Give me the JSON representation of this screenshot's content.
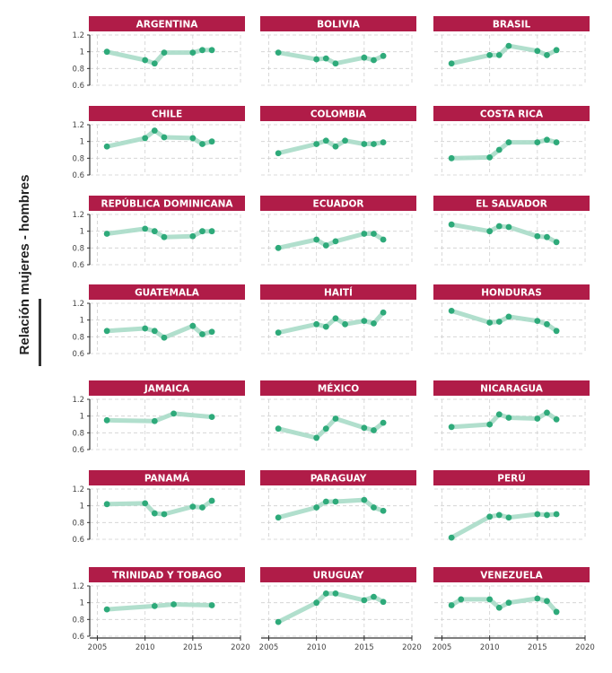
{
  "chart_data": {
    "type": "line",
    "layout": "small-multiples 3x7",
    "ylabel": "Relación mujeres - hombres",
    "xlim": [
      2004.2,
      2020
    ],
    "ylim": [
      0.6,
      1.2
    ],
    "xticks": [
      2005,
      2010,
      2015,
      2020
    ],
    "yticks": [
      0.6,
      0.8,
      1,
      1.2
    ],
    "ytick_labels": [
      "0.6",
      "0.8",
      "1",
      "1.2"
    ],
    "xtick_labels": [
      "2005",
      "2010",
      "2015",
      "2020"
    ],
    "grid": true,
    "colors": {
      "header": "#B01C48",
      "line": "#A8DCC8",
      "point": "#2EAA7A"
    },
    "panels": [
      {
        "title": "ARGENTINA",
        "x": [
          2006,
          2010,
          2011,
          2012,
          2015,
          2016,
          2017
        ],
        "y": [
          1.0,
          0.9,
          0.86,
          0.99,
          0.99,
          1.02,
          1.02
        ]
      },
      {
        "title": "BOLIVIA",
        "x": [
          2006,
          2010,
          2011,
          2012,
          2015,
          2016,
          2017
        ],
        "y": [
          0.99,
          0.91,
          0.92,
          0.86,
          0.93,
          0.9,
          0.95
        ]
      },
      {
        "title": "BRASIL",
        "x": [
          2006,
          2010,
          2011,
          2012,
          2015,
          2016,
          2017
        ],
        "y": [
          0.86,
          0.96,
          0.96,
          1.07,
          1.01,
          0.96,
          1.02
        ]
      },
      {
        "title": "CHILE",
        "x": [
          2006,
          2010,
          2011,
          2012,
          2015,
          2016,
          2017
        ],
        "y": [
          0.94,
          1.04,
          1.13,
          1.05,
          1.04,
          0.97,
          1.0
        ]
      },
      {
        "title": "COLOMBIA",
        "x": [
          2006,
          2010,
          2011,
          2012,
          2013,
          2015,
          2016,
          2017
        ],
        "y": [
          0.86,
          0.97,
          1.01,
          0.94,
          1.01,
          0.97,
          0.97,
          0.99
        ]
      },
      {
        "title": "COSTA RICA",
        "x": [
          2006,
          2010,
          2011,
          2012,
          2015,
          2016,
          2017
        ],
        "y": [
          0.8,
          0.81,
          0.9,
          0.99,
          0.99,
          1.02,
          0.99
        ]
      },
      {
        "title": "REPÚBLICA DOMINICANA",
        "x": [
          2006,
          2010,
          2011,
          2012,
          2015,
          2016,
          2017
        ],
        "y": [
          0.97,
          1.03,
          1.0,
          0.93,
          0.94,
          1.0,
          1.0
        ]
      },
      {
        "title": "ECUADOR",
        "x": [
          2006,
          2010,
          2011,
          2012,
          2015,
          2016,
          2017
        ],
        "y": [
          0.8,
          0.9,
          0.83,
          0.88,
          0.97,
          0.97,
          0.9
        ]
      },
      {
        "title": "EL SALVADOR",
        "x": [
          2006,
          2010,
          2011,
          2012,
          2015,
          2016,
          2017
        ],
        "y": [
          1.08,
          1.0,
          1.06,
          1.05,
          0.94,
          0.93,
          0.87
        ]
      },
      {
        "title": "GUATEMALA",
        "x": [
          2006,
          2010,
          2011,
          2012,
          2015,
          2016,
          2017
        ],
        "y": [
          0.87,
          0.9,
          0.87,
          0.79,
          0.93,
          0.83,
          0.86
        ]
      },
      {
        "title": "HAITÍ",
        "x": [
          2006,
          2010,
          2011,
          2012,
          2013,
          2015,
          2016,
          2017
        ],
        "y": [
          0.85,
          0.95,
          0.92,
          1.02,
          0.95,
          0.99,
          0.96,
          1.09
        ]
      },
      {
        "title": "HONDURAS",
        "x": [
          2006,
          2010,
          2011,
          2012,
          2015,
          2016,
          2017
        ],
        "y": [
          1.11,
          0.97,
          0.98,
          1.04,
          0.99,
          0.95,
          0.87
        ]
      },
      {
        "title": "JAMAICA",
        "x": [
          2006,
          2011,
          2013,
          2017
        ],
        "y": [
          0.95,
          0.94,
          1.03,
          0.99
        ]
      },
      {
        "title": "MÉXICO",
        "x": [
          2006,
          2010,
          2011,
          2012,
          2015,
          2016,
          2017
        ],
        "y": [
          0.85,
          0.74,
          0.85,
          0.97,
          0.86,
          0.83,
          0.92
        ]
      },
      {
        "title": "NICARAGUA",
        "x": [
          2006,
          2010,
          2011,
          2012,
          2015,
          2016,
          2017
        ],
        "y": [
          0.87,
          0.9,
          1.02,
          0.98,
          0.97,
          1.04,
          0.96
        ]
      },
      {
        "title": "PANAMÁ",
        "x": [
          2006,
          2010,
          2011,
          2012,
          2015,
          2016,
          2017
        ],
        "y": [
          1.02,
          1.03,
          0.91,
          0.9,
          0.99,
          0.98,
          1.06
        ]
      },
      {
        "title": "PARAGUAY",
        "x": [
          2006,
          2010,
          2011,
          2012,
          2015,
          2016,
          2017
        ],
        "y": [
          0.86,
          0.98,
          1.05,
          1.05,
          1.07,
          0.98,
          0.94
        ]
      },
      {
        "title": "PERÚ",
        "x": [
          2006,
          2010,
          2011,
          2012,
          2015,
          2016,
          2017
        ],
        "y": [
          0.62,
          0.87,
          0.89,
          0.86,
          0.9,
          0.89,
          0.9
        ]
      },
      {
        "title": "TRINIDAD Y TOBAGO",
        "x": [
          2006,
          2011,
          2013,
          2017
        ],
        "y": [
          0.92,
          0.96,
          0.98,
          0.97
        ]
      },
      {
        "title": "URUGUAY",
        "x": [
          2006,
          2010,
          2011,
          2012,
          2015,
          2016,
          2017
        ],
        "y": [
          0.77,
          1.0,
          1.11,
          1.11,
          1.03,
          1.07,
          1.01
        ]
      },
      {
        "title": "VENEZUELA",
        "x": [
          2006,
          2007,
          2010,
          2011,
          2012,
          2015,
          2016,
          2017
        ],
        "y": [
          0.97,
          1.04,
          1.04,
          0.94,
          1.0,
          1.05,
          1.02,
          0.89
        ]
      }
    ]
  }
}
